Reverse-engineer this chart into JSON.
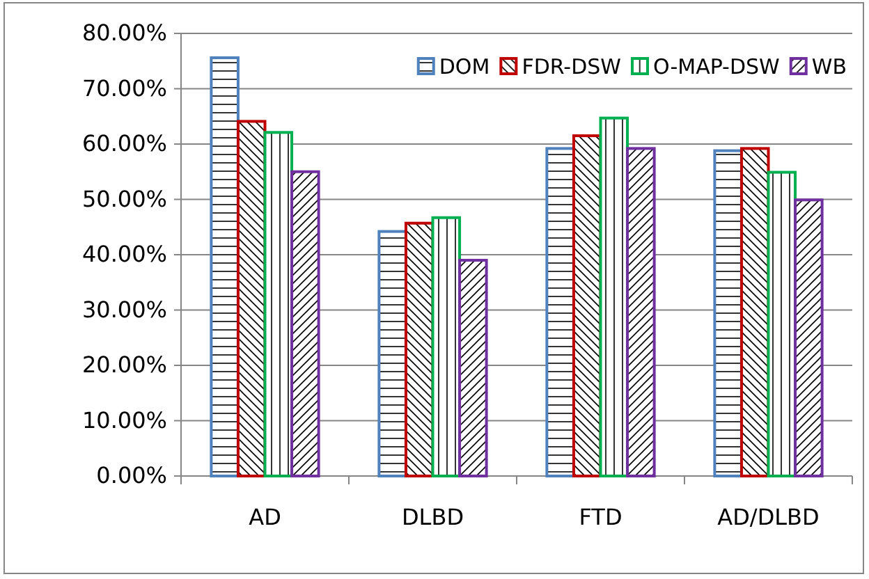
{
  "chart_data": {
    "type": "bar",
    "categories": [
      "AD",
      "DLBD",
      "FTD",
      "AD/DLBD"
    ],
    "series": [
      {
        "name": "DOM",
        "color": "#4f81bd",
        "values": [
          75.6,
          44.2,
          59.2,
          58.8
        ]
      },
      {
        "name": "FDR-DSW",
        "color": "#c00000",
        "values": [
          64.1,
          45.7,
          61.5,
          59.2
        ]
      },
      {
        "name": "O-MAP-DSW",
        "color": "#00b050",
        "values": [
          62.1,
          46.7,
          64.7,
          54.9
        ]
      },
      {
        "name": "WB",
        "color": "#7030a0",
        "values": [
          55.0,
          39.0,
          59.2,
          49.9
        ]
      }
    ],
    "ylim": [
      0,
      80
    ],
    "yticks": [
      {
        "value": 0,
        "label": "0.00%"
      },
      {
        "value": 10,
        "label": "10.00%"
      },
      {
        "value": 20,
        "label": "20.00%"
      },
      {
        "value": 30,
        "label": "30.00%"
      },
      {
        "value": 40,
        "label": "40.00%"
      },
      {
        "value": 50,
        "label": "50.00%"
      },
      {
        "value": 60,
        "label": "60.00%"
      },
      {
        "value": 70,
        "label": "70.00%"
      },
      {
        "value": 80,
        "label": "80.00%"
      }
    ],
    "grid": "y",
    "legend": "top right"
  }
}
